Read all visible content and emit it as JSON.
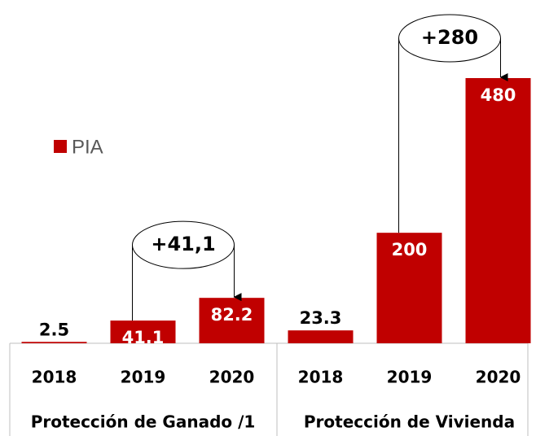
{
  "chart_data": {
    "type": "bar",
    "series": [
      {
        "name": "PIA",
        "color": "#c00000"
      }
    ],
    "groups": [
      {
        "name": "Protección de Ganado /1",
        "categories": [
          "2018",
          "2019",
          "2020"
        ],
        "values": [
          2.5,
          41.1,
          82.2
        ]
      },
      {
        "name": "Protección de Vivienda",
        "categories": [
          "2018",
          "2019",
          "2020"
        ],
        "values": [
          23.3,
          200,
          480
        ]
      }
    ],
    "annotations": [
      "+41,1",
      "+280"
    ]
  }
}
